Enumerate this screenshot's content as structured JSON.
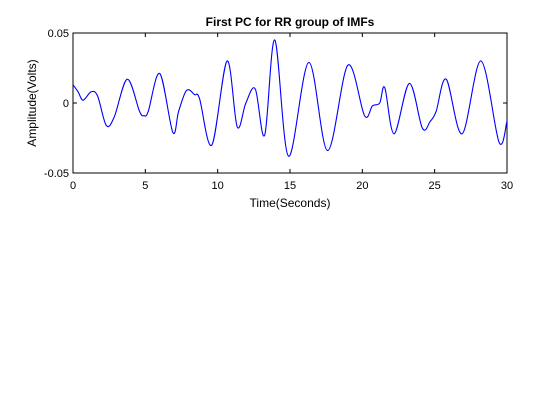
{
  "chart_data": {
    "type": "line",
    "title": "First PC for RR group of IMFs",
    "xlabel": "Time(Seconds)",
    "ylabel": "Amplitude(Volts)",
    "xlim": [
      0,
      30
    ],
    "ylim": [
      -0.05,
      0.05
    ],
    "x_ticks": [
      0,
      5,
      10,
      15,
      20,
      25,
      30
    ],
    "x_tick_labels": [
      "0",
      "5",
      "10",
      "15",
      "20",
      "25",
      "30"
    ],
    "y_ticks": [
      -0.05,
      0,
      0.05
    ],
    "y_tick_labels": [
      "-0.05",
      "0",
      "0.05"
    ],
    "grid": false,
    "line_color": "#0000ff",
    "series": [
      {
        "x": [
          0,
          0.35,
          0.7,
          1.25,
          1.7,
          2.3,
          2.85,
          3.75,
          4.6,
          4.9,
          5.2,
          6.0,
          6.9,
          7.3,
          7.85,
          8.4,
          8.75,
          9.6,
          10.65,
          11.35,
          11.95,
          12.6,
          13.25,
          13.95,
          14.9,
          16.3,
          17.6,
          19.0,
          20.15,
          20.7,
          21.2,
          21.55,
          22.2,
          23.25,
          24.15,
          24.7,
          25.1,
          25.8,
          26.9,
          28.2,
          29.45,
          30.0
        ],
        "y": [
          0.013,
          0.008,
          0.002,
          0.008,
          0.005,
          -0.016,
          -0.01,
          0.017,
          -0.006,
          -0.009,
          -0.006,
          0.021,
          -0.021,
          -0.006,
          0.009,
          0.006,
          0.003,
          -0.03,
          0.03,
          -0.017,
          0.0,
          0.01,
          -0.023,
          0.045,
          -0.038,
          0.029,
          -0.034,
          0.027,
          -0.009,
          -0.002,
          0.0,
          0.011,
          -0.022,
          0.014,
          -0.018,
          -0.013,
          -0.006,
          0.017,
          -0.022,
          0.03,
          -0.028,
          -0.013
        ]
      }
    ]
  }
}
